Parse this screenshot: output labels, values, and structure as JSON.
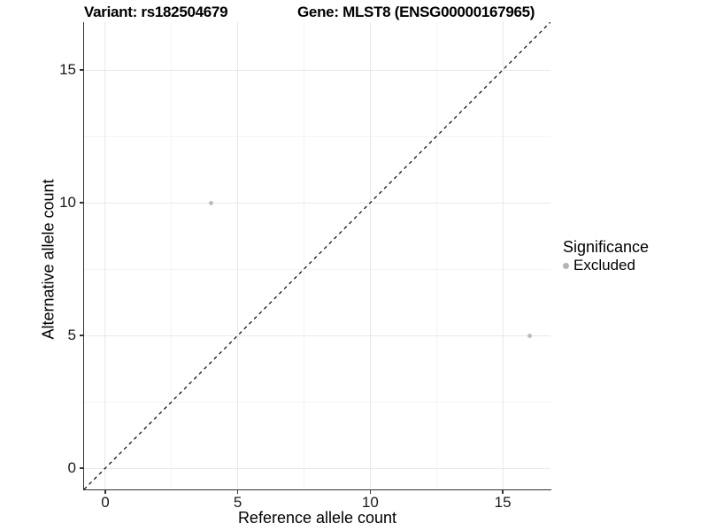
{
  "titles": {
    "left": "Variant: rs182504679",
    "right": "Gene: MLST8 (ENSG00000167965)"
  },
  "chart_data": {
    "type": "scatter",
    "xlabel": "Reference allele count",
    "ylabel": "Alternative allele count",
    "xlim": [
      -0.8,
      16.8
    ],
    "ylim": [
      -0.8,
      16.8
    ],
    "x_ticks": [
      0,
      5,
      10,
      15
    ],
    "y_ticks": [
      0,
      5,
      10,
      15
    ],
    "x_minor_ticks": [
      2.5,
      7.5,
      12.5
    ],
    "y_minor_ticks": [
      2.5,
      7.5,
      12.5
    ],
    "grid": true,
    "identity_line": {
      "slope": 1,
      "intercept": 0,
      "style": "dashed",
      "color": "#000000"
    },
    "series": [
      {
        "name": "Excluded",
        "color": "#bebebe",
        "points": [
          [
            4,
            10
          ],
          [
            16,
            5
          ]
        ]
      }
    ],
    "legend": {
      "title": "Significance",
      "position": "right",
      "items": [
        {
          "label": "Excluded",
          "color": "#b3b3b3"
        }
      ]
    },
    "colors": {
      "axis_line": "#333333",
      "major_grid": "#e8e8e8",
      "minor_grid": "#f4f4f4"
    }
  }
}
